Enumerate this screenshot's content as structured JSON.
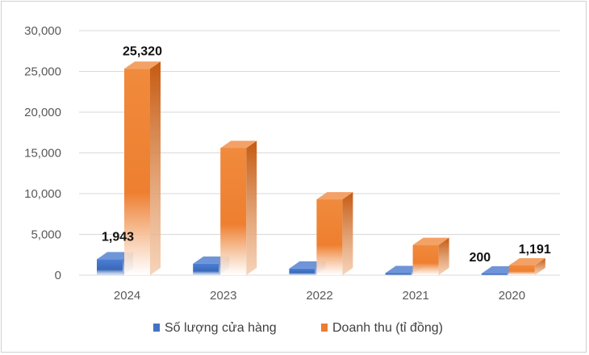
{
  "chart_data": {
    "type": "bar",
    "title": "",
    "xlabel": "",
    "ylabel": "",
    "categories": [
      "2024",
      "2023",
      "2022",
      "2021",
      "2020"
    ],
    "ylim": [
      0,
      30000
    ],
    "yticks": [
      0,
      5000,
      10000,
      15000,
      20000,
      25000,
      30000
    ],
    "ytick_labels": [
      "0",
      "5,000",
      "10,000",
      "15,000",
      "20,000",
      "25,000",
      "30,000"
    ],
    "grid": true,
    "legend_position": "bottom",
    "series": [
      {
        "name": "Số lượng cửa hàng",
        "color": "#4472C4",
        "values": [
          1943,
          1400,
          800,
          250,
          200
        ],
        "data_labels": [
          "1,943",
          "",
          "",
          "",
          "200"
        ]
      },
      {
        "name": "Doanh thu (tỉ đồng)",
        "color": "#ED7D31",
        "values": [
          25320,
          15600,
          9300,
          3700,
          1191
        ],
        "data_labels": [
          "25,320",
          "",
          "",
          "",
          "1,191"
        ]
      }
    ]
  }
}
